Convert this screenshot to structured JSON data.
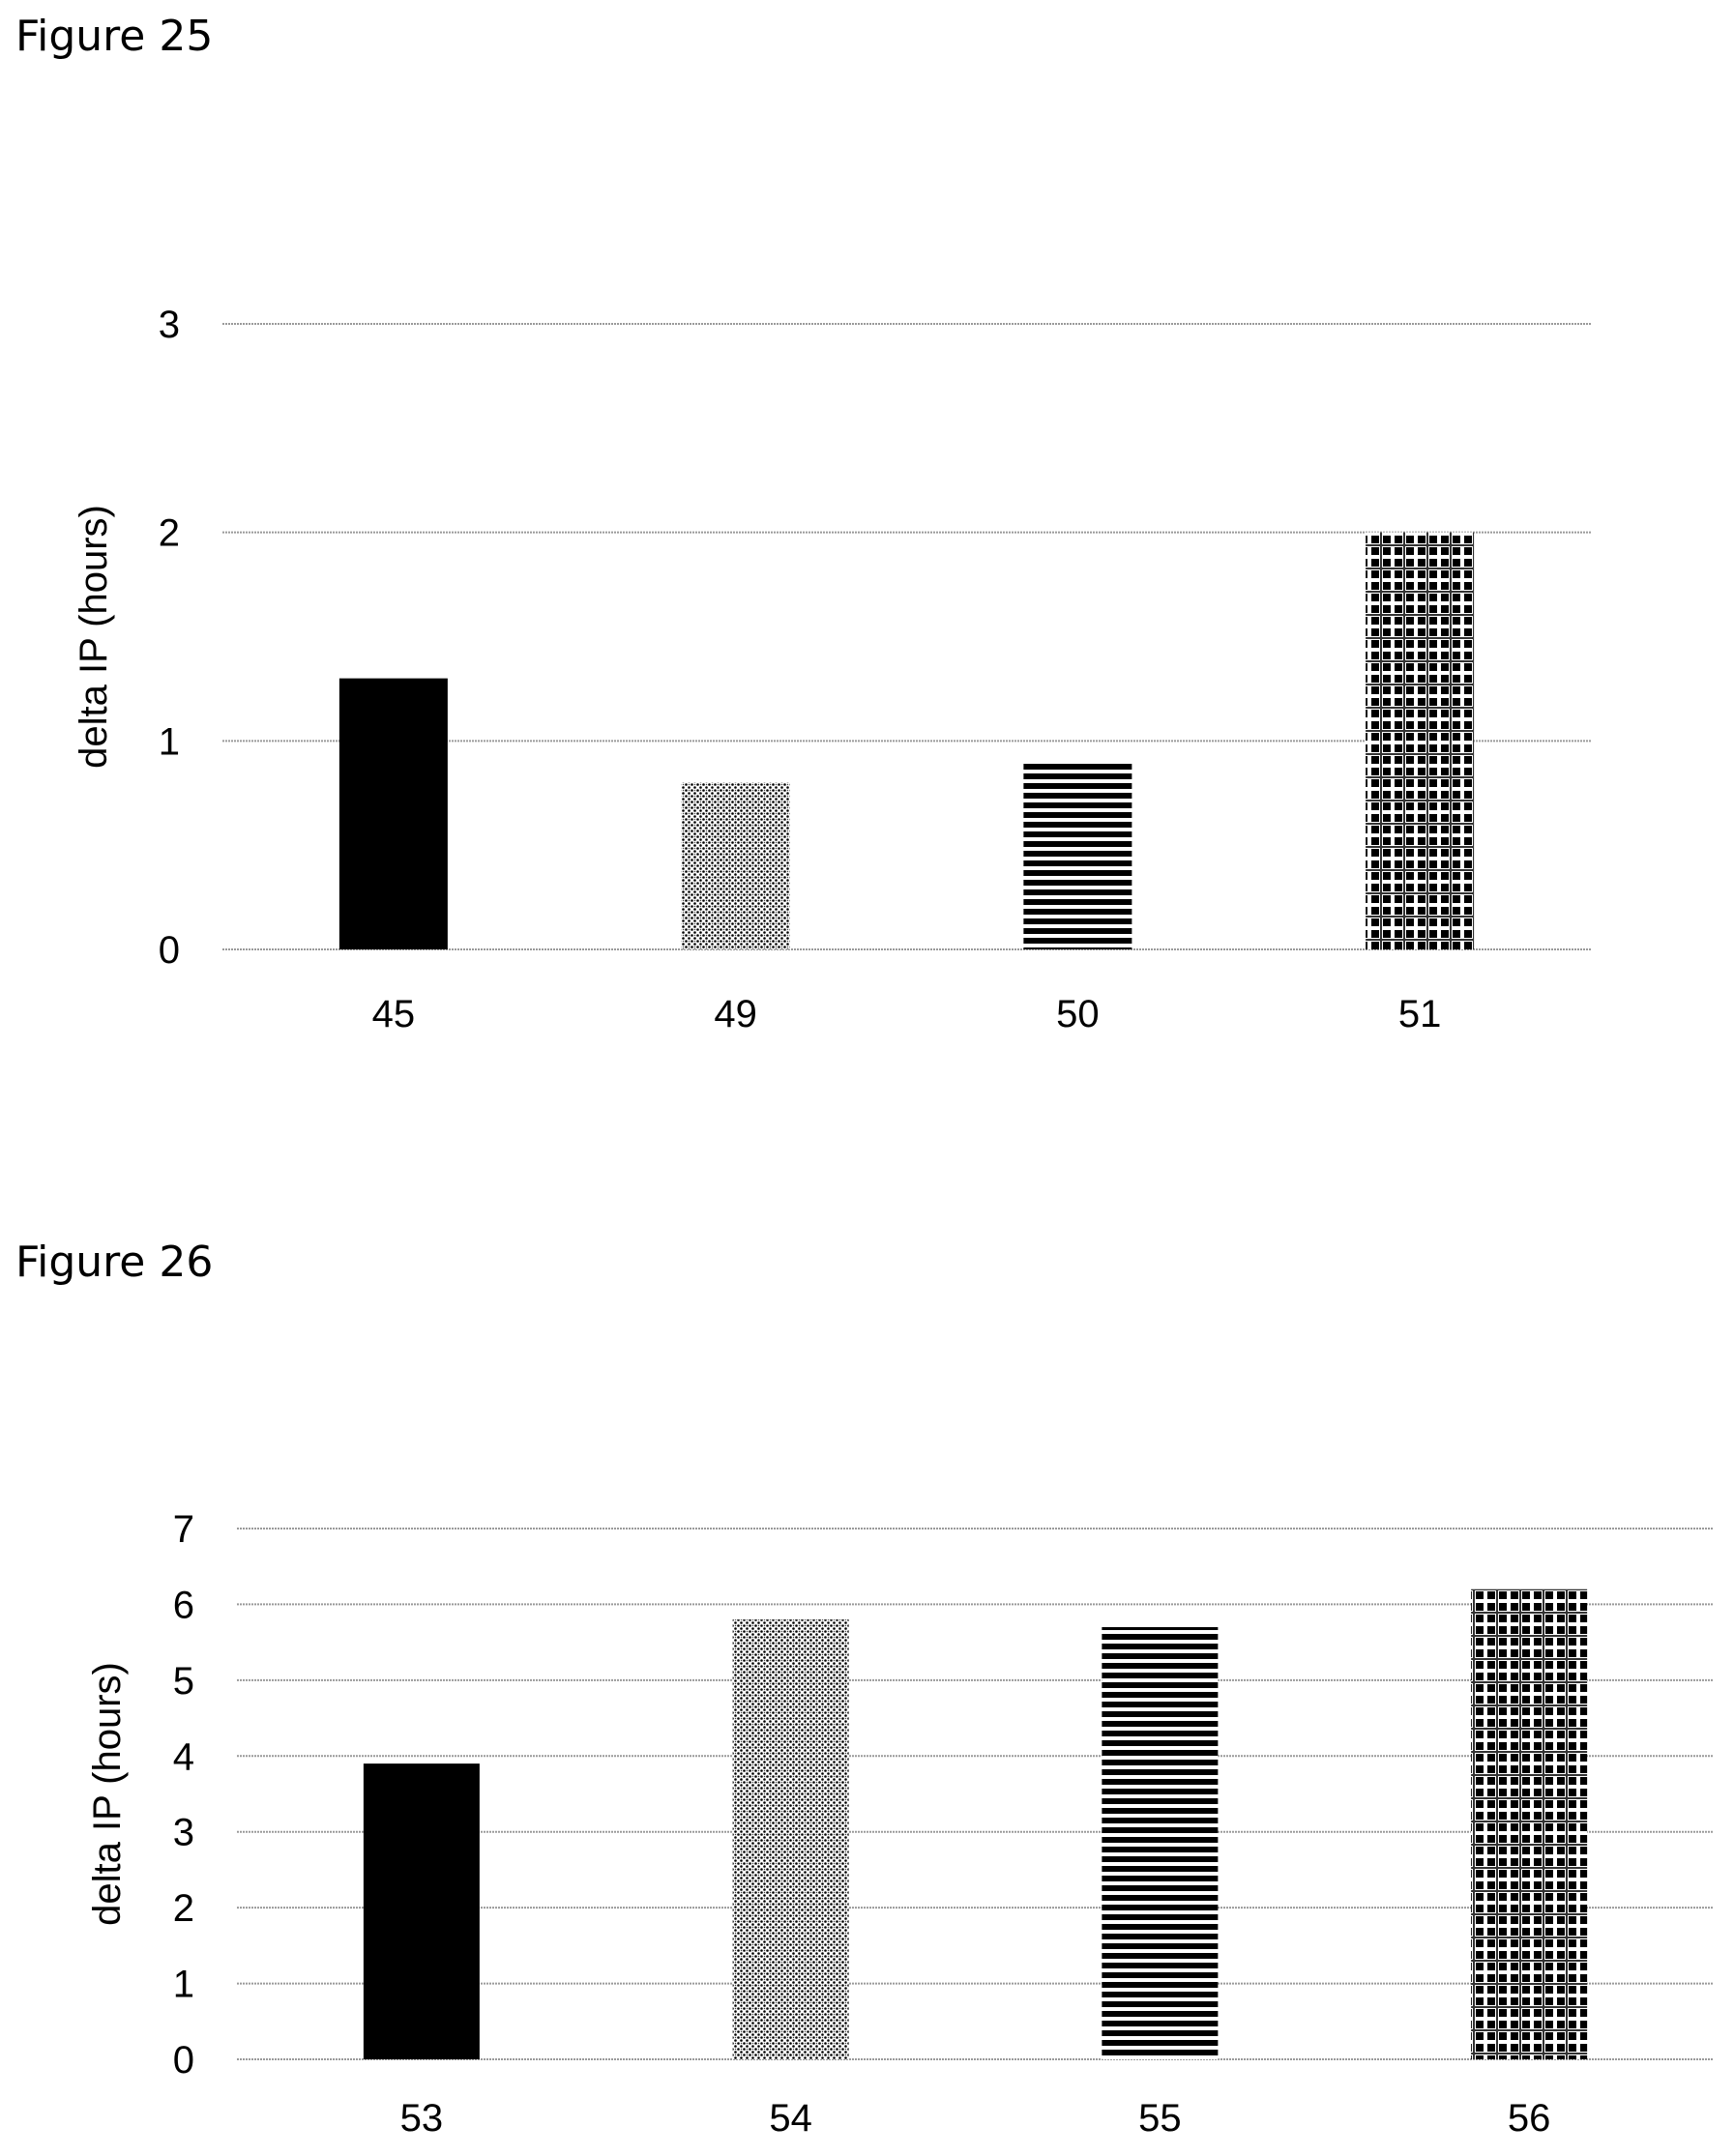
{
  "figures": [
    {
      "caption": "Figure 25",
      "chart_data": {
        "type": "bar",
        "categories": [
          "45",
          "49",
          "50",
          "51"
        ],
        "values": [
          1.3,
          0.8,
          0.89,
          2.0
        ],
        "ylabel": "delta IP (hours)",
        "xlabel": "",
        "title": "",
        "ylim": [
          0,
          3
        ],
        "yticks": [
          0,
          1,
          2,
          3
        ],
        "grid": true,
        "bar_patterns": [
          "solid",
          "stipple",
          "horizontal-stripes",
          "checker"
        ]
      }
    },
    {
      "caption": "Figure 26",
      "chart_data": {
        "type": "bar",
        "categories": [
          "53",
          "54",
          "55",
          "56"
        ],
        "values": [
          3.9,
          5.8,
          5.7,
          6.2
        ],
        "ylabel": "delta IP (hours)",
        "xlabel": "",
        "title": "",
        "ylim": [
          0,
          7
        ],
        "yticks": [
          0,
          1,
          2,
          3,
          4,
          5,
          6,
          7
        ],
        "grid": true,
        "bar_patterns": [
          "solid",
          "stipple",
          "horizontal-stripes",
          "checker"
        ]
      }
    }
  ]
}
